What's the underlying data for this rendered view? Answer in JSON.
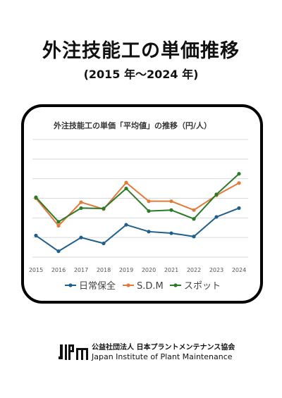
{
  "header": {
    "title": "外注技能工の単価推移",
    "subtitle": "(2015 年～2024 年)"
  },
  "chart_data": {
    "type": "line",
    "title": "外注技能工の単価「平均値」の推移（円/人）",
    "x": [
      "2015",
      "2016",
      "2017",
      "2018",
      "2019",
      "2020",
      "2021",
      "2022",
      "2023",
      "2024"
    ],
    "ylim": [
      0,
      6
    ],
    "grid": true,
    "legend": "bottom",
    "series": [
      {
        "name": "日常保全",
        "color": "#1f5f8b",
        "values": [
          1.1,
          0.3,
          1.0,
          0.7,
          1.65,
          1.3,
          1.22,
          1.05,
          2.05,
          2.5
        ]
      },
      {
        "name": "S.D.M",
        "color": "#e07b39",
        "values": [
          3.0,
          1.6,
          2.8,
          2.45,
          3.8,
          2.85,
          2.85,
          2.4,
          3.15,
          3.78
        ]
      },
      {
        "name": "スポット",
        "color": "#2a7a2a",
        "values": [
          3.05,
          1.8,
          2.5,
          2.48,
          3.5,
          2.35,
          2.4,
          1.95,
          3.2,
          4.25
        ]
      }
    ]
  },
  "footer": {
    "logo_text": "JIPM",
    "org_japanese": "公益社団法人 日本プラントメンテナンス協会",
    "org_english": "Japan Institute of Plant Maintenance"
  }
}
